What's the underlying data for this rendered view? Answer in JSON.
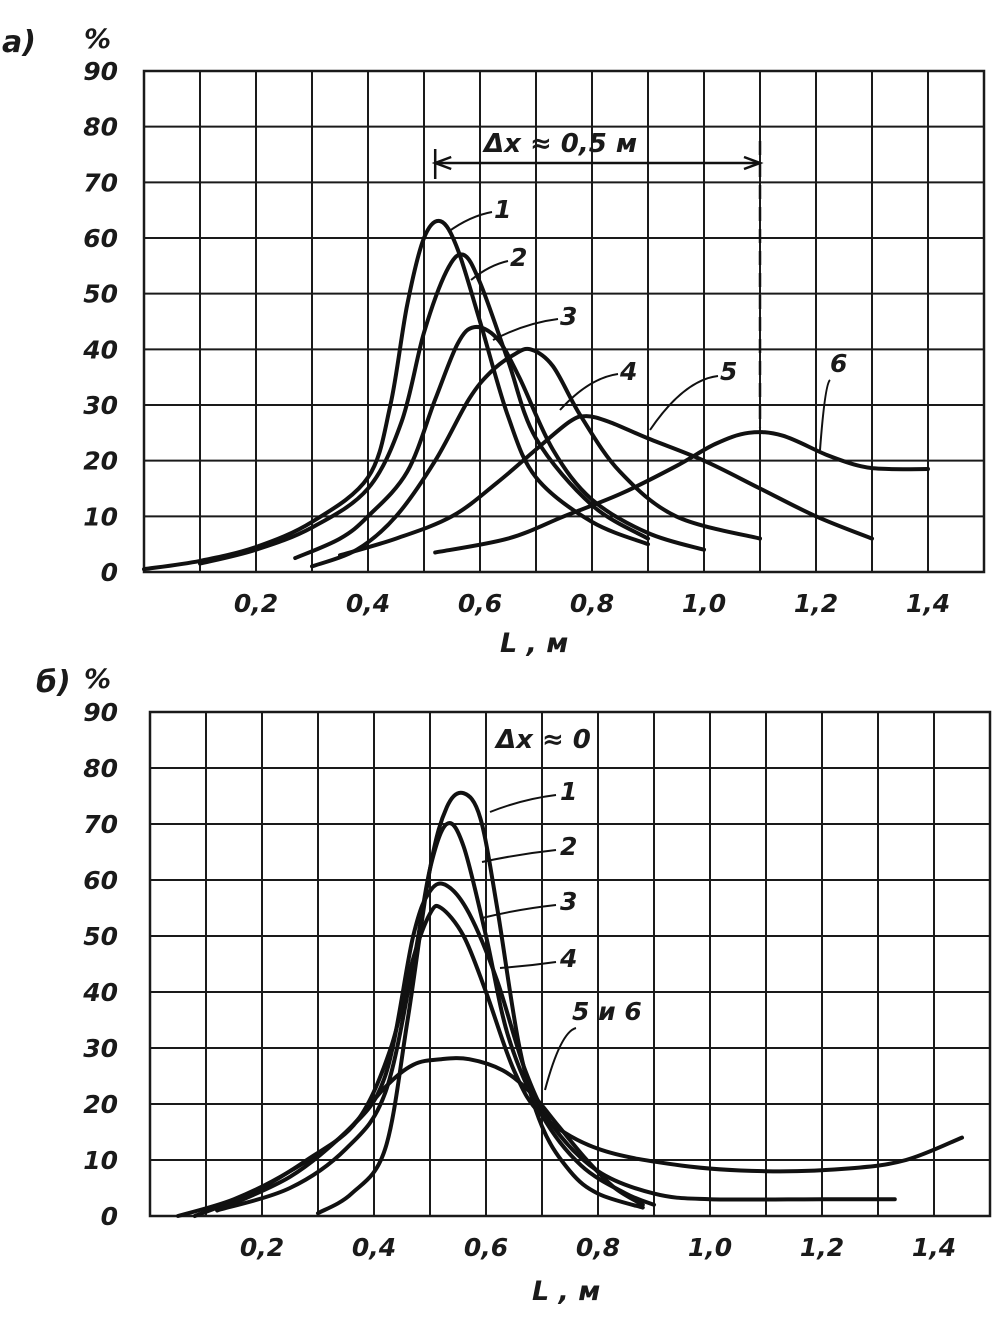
{
  "chart_data": [
    {
      "type": "line",
      "panel_label": "а)",
      "title": "",
      "xlabel": "L , м",
      "ylabel": "%",
      "xlim": [
        0,
        1.5
      ],
      "ylim": [
        0,
        90
      ],
      "xticks": [
        "0,2",
        "0,4",
        "0,6",
        "0,8",
        "1,0",
        "1,2",
        "1,4"
      ],
      "yticks": [
        "0",
        "10",
        "20",
        "30",
        "40",
        "50",
        "60",
        "70",
        "80",
        "90"
      ],
      "grid": true,
      "annotation": "Δx ≈ 0,5 м",
      "annotation_range": [
        0.52,
        1.1
      ],
      "series": [
        {
          "name": "1",
          "points": [
            [
              0.0,
              0.5
            ],
            [
              0.1,
              2
            ],
            [
              0.2,
              4.5
            ],
            [
              0.3,
              9
            ],
            [
              0.4,
              17
            ],
            [
              0.44,
              30
            ],
            [
              0.47,
              48
            ],
            [
              0.5,
              60
            ],
            [
              0.53,
              63
            ],
            [
              0.56,
              58
            ],
            [
              0.6,
              45
            ],
            [
              0.65,
              28
            ],
            [
              0.7,
              17
            ],
            [
              0.8,
              9
            ],
            [
              0.9,
              5
            ]
          ]
        },
        {
          "name": "2",
          "points": [
            [
              0.1,
              1.5
            ],
            [
              0.2,
              4
            ],
            [
              0.3,
              8
            ],
            [
              0.4,
              15
            ],
            [
              0.46,
              27
            ],
            [
              0.5,
              43
            ],
            [
              0.54,
              54
            ],
            [
              0.57,
              57
            ],
            [
              0.6,
              52
            ],
            [
              0.65,
              38
            ],
            [
              0.7,
              24
            ],
            [
              0.8,
              12
            ],
            [
              0.9,
              6
            ]
          ]
        },
        {
          "name": "3",
          "points": [
            [
              0.27,
              2.5
            ],
            [
              0.35,
              6
            ],
            [
              0.4,
              10
            ],
            [
              0.47,
              18
            ],
            [
              0.52,
              31
            ],
            [
              0.56,
              41
            ],
            [
              0.59,
              44
            ],
            [
              0.63,
              42
            ],
            [
              0.67,
              35
            ],
            [
              0.73,
              22
            ],
            [
              0.8,
              13
            ],
            [
              0.9,
              7
            ],
            [
              1.0,
              4
            ]
          ]
        },
        {
          "name": "4",
          "points": [
            [
              0.3,
              1
            ],
            [
              0.38,
              4
            ],
            [
              0.45,
              10
            ],
            [
              0.52,
              20
            ],
            [
              0.58,
              31
            ],
            [
              0.62,
              36
            ],
            [
              0.66,
              39
            ],
            [
              0.69,
              40
            ],
            [
              0.73,
              37
            ],
            [
              0.78,
              28
            ],
            [
              0.85,
              18
            ],
            [
              0.95,
              10
            ],
            [
              1.1,
              6
            ]
          ]
        },
        {
          "name": "5",
          "points": [
            [
              0.35,
              3
            ],
            [
              0.45,
              6
            ],
            [
              0.55,
              10
            ],
            [
              0.63,
              16
            ],
            [
              0.7,
              22
            ],
            [
              0.76,
              27
            ],
            [
              0.79,
              28
            ],
            [
              0.83,
              27
            ],
            [
              0.9,
              24
            ],
            [
              1.0,
              20
            ],
            [
              1.1,
              15
            ],
            [
              1.2,
              10
            ],
            [
              1.3,
              6
            ]
          ]
        },
        {
          "name": "6",
          "points": [
            [
              0.52,
              3.5
            ],
            [
              0.65,
              6
            ],
            [
              0.75,
              10
            ],
            [
              0.85,
              14
            ],
            [
              0.95,
              19
            ],
            [
              1.02,
              23
            ],
            [
              1.08,
              25
            ],
            [
              1.14,
              24.5
            ],
            [
              1.22,
              21
            ],
            [
              1.28,
              19
            ],
            [
              1.33,
              18.5
            ],
            [
              1.4,
              18.5
            ]
          ]
        }
      ]
    },
    {
      "type": "line",
      "panel_label": "б)",
      "title": "",
      "xlabel": "L , м",
      "ylabel": "%",
      "xlim": [
        0,
        1.5
      ],
      "ylim": [
        0,
        90
      ],
      "xticks": [
        "0,2",
        "0,4",
        "0,6",
        "0,8",
        "1,0",
        "1,2",
        "1,4"
      ],
      "yticks": [
        "0",
        "10",
        "20",
        "30",
        "40",
        "50",
        "60",
        "70",
        "80",
        "90"
      ],
      "grid": true,
      "annotation": "Δx ≈ 0",
      "series": [
        {
          "name": "1",
          "points": [
            [
              0.3,
              0.5
            ],
            [
              0.36,
              4
            ],
            [
              0.42,
              12
            ],
            [
              0.46,
              35
            ],
            [
              0.5,
              62
            ],
            [
              0.53,
              73
            ],
            [
              0.56,
              75.5
            ],
            [
              0.59,
              71
            ],
            [
              0.62,
              55
            ],
            [
              0.66,
              30
            ],
            [
              0.7,
              16
            ],
            [
              0.75,
              8
            ],
            [
              0.8,
              4
            ],
            [
              0.88,
              1.5
            ]
          ]
        },
        {
          "name": "2",
          "points": [
            [
              0.12,
              1
            ],
            [
              0.25,
              5
            ],
            [
              0.35,
              12
            ],
            [
              0.42,
              22
            ],
            [
              0.47,
              45
            ],
            [
              0.5,
              62
            ],
            [
              0.53,
              70
            ],
            [
              0.56,
              66
            ],
            [
              0.6,
              50
            ],
            [
              0.64,
              32
            ],
            [
              0.7,
              18
            ],
            [
              0.77,
              9
            ],
            [
              0.85,
              4
            ],
            [
              0.9,
              2
            ]
          ]
        },
        {
          "name": "3",
          "points": [
            [
              0.05,
              0
            ],
            [
              0.15,
              3
            ],
            [
              0.25,
              8
            ],
            [
              0.35,
              15
            ],
            [
              0.42,
              25
            ],
            [
              0.47,
              50
            ],
            [
              0.5,
              58
            ],
            [
              0.53,
              59
            ],
            [
              0.57,
              54
            ],
            [
              0.62,
              42
            ],
            [
              0.67,
              26
            ],
            [
              0.72,
              16
            ],
            [
              0.8,
              8
            ],
            [
              0.9,
              4
            ],
            [
              1.0,
              3
            ],
            [
              1.2,
              3
            ],
            [
              1.33,
              3
            ]
          ]
        },
        {
          "name": "4",
          "points": [
            [
              0.08,
              0
            ],
            [
              0.18,
              4
            ],
            [
              0.28,
              10
            ],
            [
              0.37,
              17
            ],
            [
              0.43,
              30
            ],
            [
              0.47,
              46
            ],
            [
              0.5,
              54
            ],
            [
              0.52,
              55
            ],
            [
              0.56,
              50
            ],
            [
              0.6,
              40
            ],
            [
              0.65,
              26
            ],
            [
              0.7,
              18
            ],
            [
              0.8,
              12
            ],
            [
              0.95,
              9
            ],
            [
              1.1,
              8
            ],
            [
              1.25,
              8.5
            ],
            [
              1.35,
              10
            ],
            [
              1.45,
              14
            ]
          ]
        },
        {
          "name": "5 и 6",
          "points": [
            [
              0.12,
              1
            ],
            [
              0.25,
              7
            ],
            [
              0.35,
              15
            ],
            [
              0.42,
              23
            ],
            [
              0.47,
              27
            ],
            [
              0.52,
              28
            ],
            [
              0.57,
              28
            ],
            [
              0.63,
              26
            ],
            [
              0.68,
              22
            ],
            [
              0.73,
              16
            ],
            [
              0.78,
              10
            ],
            [
              0.83,
              5
            ],
            [
              0.88,
              2
            ]
          ]
        }
      ]
    }
  ]
}
